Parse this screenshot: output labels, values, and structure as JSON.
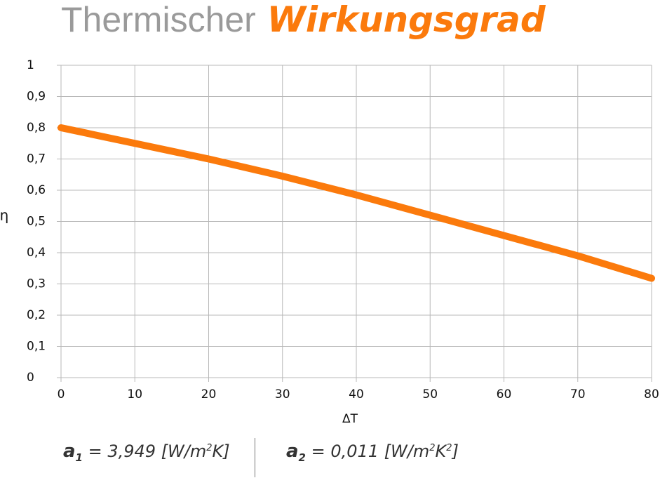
{
  "chart_data": {
    "type": "line",
    "title": [
      "Thermischer",
      "Wirkungsgrad"
    ],
    "x_label": "ΔT",
    "y_label": "η",
    "x": [
      0,
      10,
      20,
      30,
      40,
      50,
      60,
      70,
      80
    ],
    "series": [
      {
        "color": "#fb7a0c",
        "values": [
          0.8,
          0.75,
          0.7,
          0.645,
          0.585,
          0.52,
          0.455,
          0.39,
          0.318
        ]
      }
    ],
    "xlim": [
      0,
      80
    ],
    "xticks": [
      0,
      10,
      20,
      30,
      40,
      50,
      60,
      70,
      80
    ],
    "ylim": [
      0,
      1
    ],
    "yticks": [
      0,
      {
        "value": 0.1,
        "label": "0,1"
      },
      {
        "value": 0.2,
        "label": "0,2"
      },
      {
        "value": 0.3,
        "label": "0,3"
      },
      {
        "value": 0.4,
        "label": "0,4"
      },
      {
        "value": 0.5,
        "label": "0,5"
      },
      {
        "value": 0.6,
        "label": "0,6"
      },
      {
        "value": 0.7,
        "label": "0,7"
      },
      {
        "value": 0.8,
        "label": "0,8"
      },
      {
        "value": 0.9,
        "label": "0,9"
      },
      1
    ],
    "grid": true,
    "annotations": [
      [
        "a",
        "1",
        " = 3,949 [W/m",
        "2",
        "K]"
      ],
      [
        "a",
        "2",
        " = 0,011 [W/m",
        "2",
        "K",
        "2",
        "]"
      ]
    ]
  }
}
